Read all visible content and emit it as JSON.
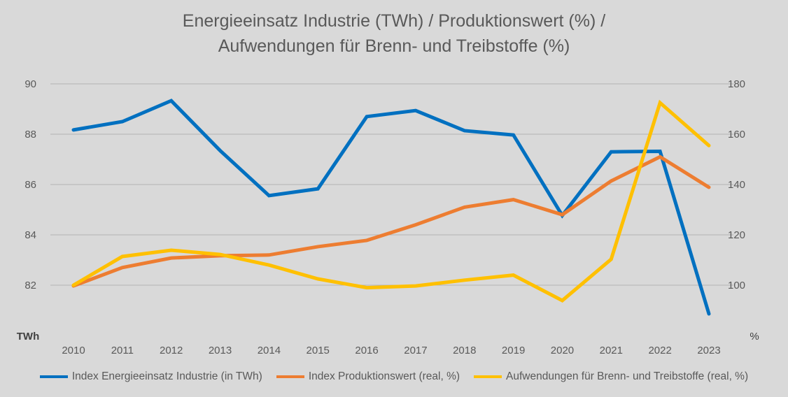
{
  "chart_data": {
    "type": "line",
    "title": [
      "Energieeinsatz Industrie (TWh) / Produktionswert (%) /",
      "Aufwendungen für Brenn- und Treibstoffe (%)"
    ],
    "x": [
      "2010",
      "2011",
      "2012",
      "2013",
      "2014",
      "2015",
      "2016",
      "2017",
      "2018",
      "2019",
      "2020",
      "2021",
      "2022",
      "2023"
    ],
    "y_left": {
      "label": "TWh",
      "range": [
        80,
        90
      ],
      "ticks": [
        "82",
        "84",
        "86",
        "88",
        "90"
      ]
    },
    "y_right": {
      "label": "%",
      "range": [
        80,
        180
      ],
      "ticks": [
        "100",
        "120",
        "140",
        "160",
        "180"
      ]
    },
    "grid": true,
    "legend_position": "bottom",
    "series": [
      {
        "name": "Index Energieeinsatz Industrie (in TWh)",
        "axis": "left",
        "color": "#0070c0",
        "values": [
          88.17,
          88.5,
          89.33,
          87.35,
          85.56,
          85.83,
          88.7,
          88.94,
          88.14,
          87.97,
          84.77,
          87.3,
          87.32,
          80.86
        ]
      },
      {
        "name": "Index Produktionswert (real, %)",
        "axis": "right",
        "color": "#ed7d31",
        "values": [
          99.7,
          107,
          110.8,
          111.7,
          112,
          115.3,
          117.8,
          124,
          131,
          134,
          128,
          141.4,
          151,
          138.9
        ]
      },
      {
        "name": "Aufwendungen für Brenn- und Treibstoffe (real, %)",
        "axis": "right",
        "color": "#ffc000",
        "values": [
          100,
          111.4,
          113.9,
          112.2,
          108,
          102.5,
          99,
          99.7,
          102,
          104,
          93.9,
          110.3,
          172.5,
          155.5
        ]
      }
    ]
  }
}
